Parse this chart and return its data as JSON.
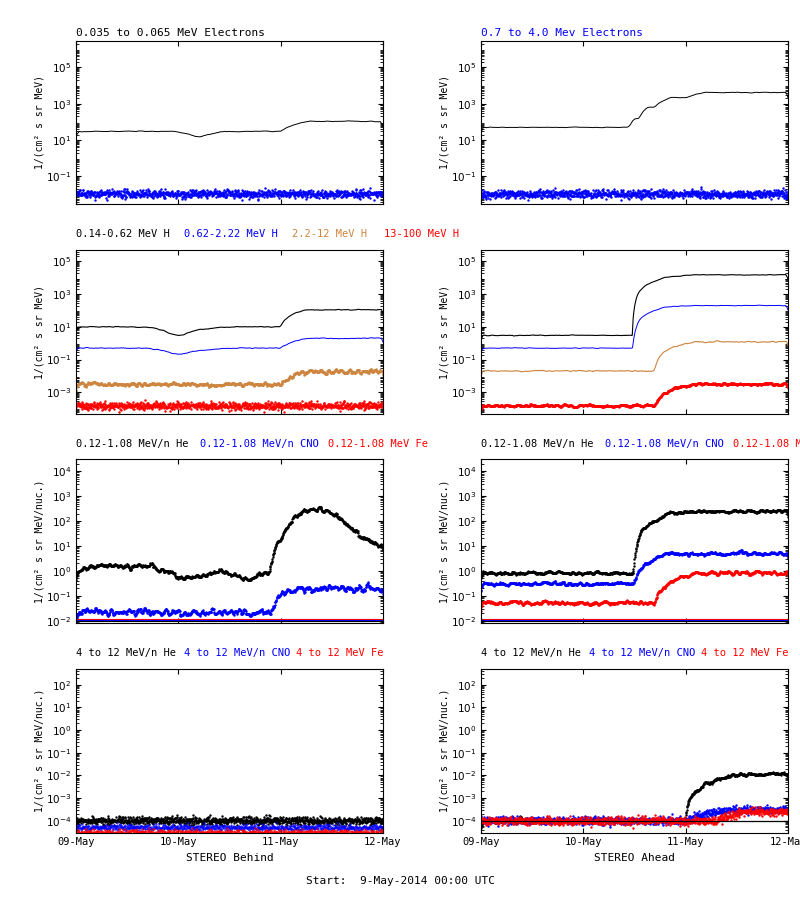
{
  "title_center": "Start:  9-May-2014 00:00 UTC",
  "xlabel_left": "STEREO Behind",
  "xlabel_right": "STEREO Ahead",
  "xtick_labels": [
    "09-May",
    "10-May",
    "11-May",
    "12-May"
  ],
  "background_color": "#ffffff",
  "ylabels": [
    "1/(cm² s sr MeV)",
    "1/(cm² s sr MeV)",
    "1/(cm² s sr MeV/nuc.)",
    "1/(cm² s sr MeV/nuc.)"
  ],
  "ylim_rows": [
    [
      0.003,
      3000000.0
    ],
    [
      5e-05,
      500000.0
    ],
    [
      0.008,
      30000.0
    ],
    [
      3e-05,
      500.0
    ]
  ],
  "seed": 42,
  "npts": 1000
}
